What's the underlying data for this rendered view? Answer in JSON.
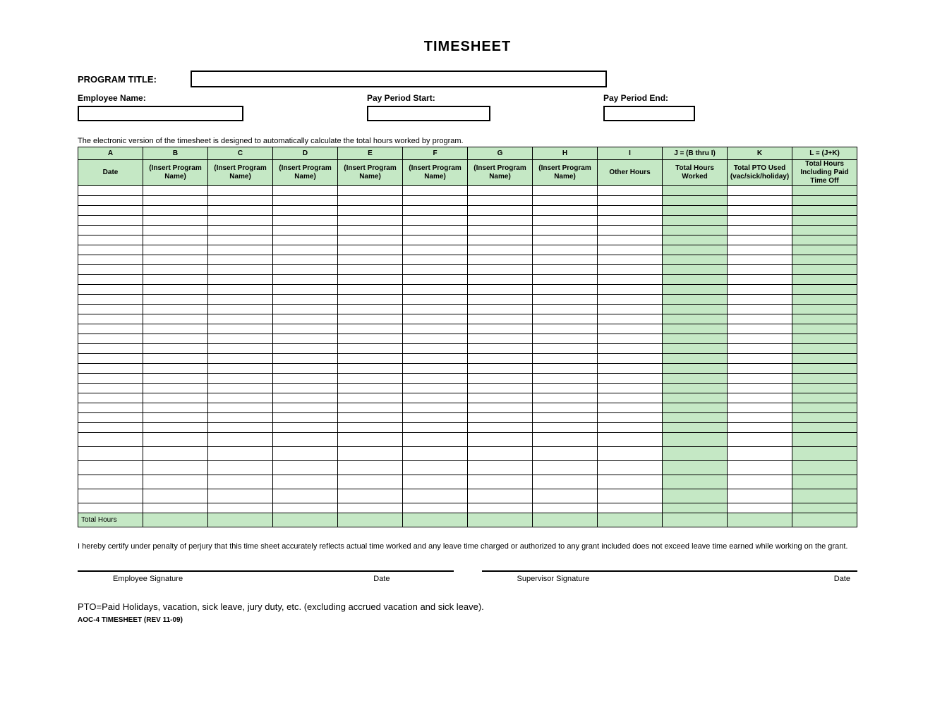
{
  "colors": {
    "header_fill": "#c5e8c5",
    "calc_fill": "#c5e8c5",
    "border": "#000000",
    "background": "#ffffff",
    "text": "#000000"
  },
  "title": "TIMESHEET",
  "program_title_label": "PROGRAM TITLE:",
  "employee_name_label": "Employee Name:",
  "pay_period_start_label": "Pay Period Start:",
  "pay_period_end_label": "Pay Period End:",
  "note": "The electronic version of the timesheet is designed to automatically calculate the total hours worked by program.",
  "columns": {
    "letters": [
      "A",
      "B",
      "C",
      "D",
      "E",
      "F",
      "G",
      "H",
      "I",
      "J = (B thru I)",
      "K",
      "L = (J+K)"
    ],
    "names": [
      "Date",
      "(Insert Program Name)",
      "(Insert Program Name)",
      "(Insert Program Name)",
      "(Insert Program Name)",
      "(Insert Program Name)",
      "(Insert Program Name)",
      "(Insert Program Name)",
      "Other Hours",
      "Total Hours Worked",
      "Total PTO Used (vac/sick/holiday)",
      "Total Hours Including Paid Time Off"
    ]
  },
  "data_row_count": 31,
  "total_row_label": "Total Hours",
  "certification": "I hereby certify under penalty of perjury that this time sheet accurately reflects actual time worked and any leave time charged or authorized to any grant included does not exceed leave time earned while working on the grant.",
  "sig": {
    "emp": "Employee Signature",
    "date1": "Date",
    "sup": "Supervisor Signature",
    "date2": "Date"
  },
  "pto_note": "PTO=Paid Holidays, vacation, sick leave, jury duty, etc. (excluding accrued vacation and sick leave).",
  "form_id": "AOC-4 TIMESHEET (REV 11-09)",
  "layout": {
    "info_box_widths": [
      235,
      175,
      130
    ],
    "info_gaps": [
      175,
      160
    ],
    "calc_column_indices": [
      9,
      11
    ],
    "total_row_fill_all": true
  }
}
